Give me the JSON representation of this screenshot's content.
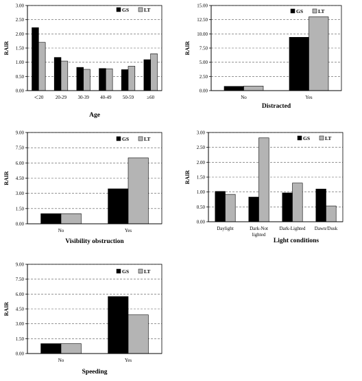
{
  "chart_data": [
    {
      "type": "bar",
      "xlabel": "Age",
      "ylabel": "RAIR",
      "ylim": [
        0,
        3.0
      ],
      "yticks": [
        "0.00",
        "0.50",
        "1.00",
        "1.50",
        "2.00",
        "2.50",
        "3.00"
      ],
      "categories": [
        "＜20",
        "20-29",
        "30-39",
        "40-49",
        "50-59",
        "≥60"
      ],
      "series": [
        {
          "name": "GS",
          "color": "#000000",
          "values": [
            2.22,
            1.17,
            0.82,
            0.78,
            0.74,
            1.09
          ]
        },
        {
          "name": "LT",
          "color": "#b4b4b4",
          "values": [
            1.7,
            1.04,
            0.75,
            0.77,
            0.86,
            1.3
          ]
        }
      ],
      "grid": "horizontal-dashed",
      "legend": "top-right"
    },
    {
      "type": "bar",
      "xlabel": "Distracted",
      "ylabel": "RAIR",
      "ylim": [
        0,
        15.0
      ],
      "yticks": [
        "0.00",
        "2.50",
        "5.00",
        "7.50",
        "10.00",
        "12.50",
        "15.00"
      ],
      "categories": [
        "No",
        "Yes"
      ],
      "series": [
        {
          "name": "GS",
          "color": "#000000",
          "values": [
            0.75,
            9.4
          ]
        },
        {
          "name": "LT",
          "color": "#b4b4b4",
          "values": [
            0.8,
            13.0
          ]
        }
      ],
      "grid": "horizontal-dashed",
      "legend": "top-right"
    },
    {
      "type": "bar",
      "xlabel": "Visibility obstruction",
      "ylabel": "RAIR",
      "ylim": [
        0,
        9.0
      ],
      "yticks": [
        "0.00",
        "1.50",
        "3.00",
        "4.50",
        "6.00",
        "7.50",
        "9.00"
      ],
      "categories": [
        "No",
        "Yes"
      ],
      "series": [
        {
          "name": "GS",
          "color": "#000000",
          "values": [
            1.0,
            3.45
          ]
        },
        {
          "name": "LT",
          "color": "#b4b4b4",
          "values": [
            1.0,
            6.5
          ]
        }
      ],
      "grid": "horizontal-dashed",
      "legend": "top-right"
    },
    {
      "type": "bar",
      "xlabel": "Light conditions",
      "ylabel": "RAIR",
      "ylim": [
        0,
        3.0
      ],
      "yticks": [
        "0.00",
        "0.50",
        "1.00",
        "1.50",
        "2.00",
        "2.50",
        "3.00"
      ],
      "categories": [
        "Daylight",
        "Dark-Not lighted",
        "Dark-Lighted",
        "Dawn/Dusk"
      ],
      "series": [
        {
          "name": "GS",
          "color": "#000000",
          "values": [
            1.02,
            0.83,
            0.97,
            1.1
          ]
        },
        {
          "name": "LT",
          "color": "#b4b4b4",
          "values": [
            0.92,
            2.82,
            1.3,
            0.53
          ]
        }
      ],
      "grid": "horizontal-dashed",
      "legend": "top-right"
    },
    {
      "type": "bar",
      "xlabel": "Speeding",
      "ylabel": "RAIR",
      "ylim": [
        0,
        9.0
      ],
      "yticks": [
        "0.00",
        "1.50",
        "3.00",
        "4.50",
        "6.00",
        "7.50",
        "9.00"
      ],
      "categories": [
        "No",
        "Yes"
      ],
      "series": [
        {
          "name": "GS",
          "color": "#000000",
          "values": [
            1.0,
            5.75
          ]
        },
        {
          "name": "LT",
          "color": "#b4b4b4",
          "values": [
            1.0,
            3.9
          ]
        }
      ],
      "grid": "horizontal-dashed",
      "legend": "top-right"
    }
  ]
}
